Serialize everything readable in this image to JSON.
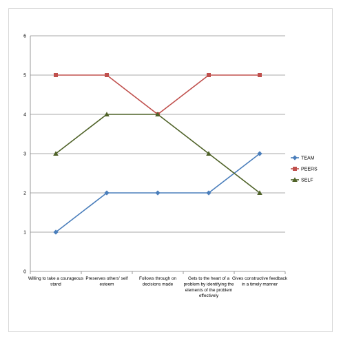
{
  "chart_data": {
    "type": "line",
    "categories": [
      [
        "Willing to take a courageous",
        "stand"
      ],
      [
        "Preserves others' self",
        "esteem"
      ],
      [
        "Follows through on",
        "decisions made"
      ],
      [
        "Gets to the heart of a",
        "problem by identifying the",
        "elements of the problem",
        "effectively"
      ],
      [
        "Gives constructive feedback",
        "in a timely manner"
      ]
    ],
    "series": [
      {
        "name": "TEAM",
        "values": [
          1,
          2,
          2,
          2,
          3
        ],
        "color": "#4a7ebb",
        "marker": "diamond"
      },
      {
        "name": "PEERS",
        "values": [
          5,
          5,
          4,
          5,
          5
        ],
        "color": "#c0504d",
        "marker": "square"
      },
      {
        "name": "SELF",
        "values": [
          3,
          4,
          4,
          3,
          2
        ],
        "color": "#4f6228",
        "marker": "triangle"
      }
    ],
    "ylim": [
      0,
      6
    ],
    "yticks": [
      0,
      1,
      2,
      3,
      4,
      5,
      6
    ],
    "grid": true,
    "legend": "right",
    "title": "",
    "xlabel": "",
    "ylabel": ""
  }
}
